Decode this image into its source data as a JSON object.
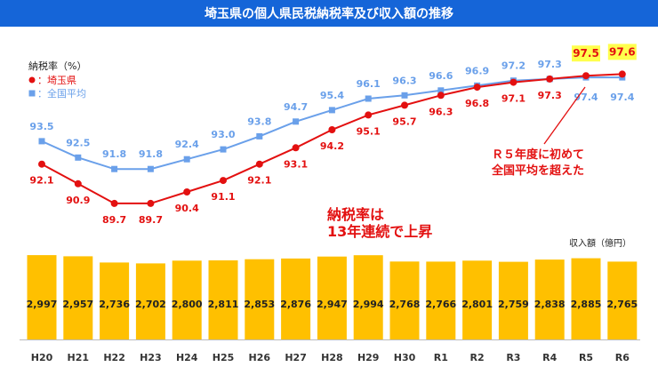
{
  "title": "埼玉県の個人県民税納税率及び収入額の推移",
  "colors": {
    "header": "#1565d8",
    "saitama": "#e31010",
    "national": "#6aa0ea",
    "bar": "#ffc000",
    "highlight": "#ffff4d",
    "annotation": "#e31010",
    "label_dark": "#222222"
  },
  "chart_data": [
    {
      "type": "line",
      "ylabel": "納税率（%）",
      "ylim": [
        88.5,
        98.0
      ],
      "categories": [
        "H20",
        "H21",
        "H22",
        "H23",
        "H24",
        "H25",
        "H26",
        "H27",
        "H28",
        "H29",
        "H30",
        "R1",
        "R2",
        "R3",
        "R4",
        "R5",
        "R6"
      ],
      "legend": [
        "：埼玉県",
        "：全国平均"
      ],
      "series": [
        {
          "name": "埼玉県",
          "values": [
            92.1,
            90.9,
            89.7,
            89.7,
            90.4,
            91.1,
            92.1,
            93.1,
            94.2,
            95.1,
            95.7,
            96.3,
            96.8,
            97.1,
            97.3,
            97.5,
            97.6
          ]
        },
        {
          "name": "全国平均",
          "values": [
            93.5,
            92.5,
            91.8,
            91.8,
            92.4,
            93.0,
            93.8,
            94.7,
            95.4,
            96.1,
            96.3,
            96.6,
            96.9,
            97.2,
            97.3,
            97.4,
            97.4
          ]
        }
      ],
      "annotations": {
        "streak_line1": "納税率は",
        "streak_line2": "13年連続で上昇",
        "r5_line1": "Ｒ５年度に初めて",
        "r5_line2": "全国平均を超えた"
      }
    },
    {
      "type": "bar",
      "ylabel": "収入額（億円）",
      "ylim": [
        0,
        3000
      ],
      "categories": [
        "H20",
        "H21",
        "H22",
        "H23",
        "H24",
        "H25",
        "H26",
        "H27",
        "H28",
        "H29",
        "H30",
        "R1",
        "R2",
        "R3",
        "R4",
        "R5",
        "R6"
      ],
      "values": [
        2997,
        2957,
        2736,
        2702,
        2800,
        2811,
        2853,
        2876,
        2947,
        2994,
        2768,
        2766,
        2801,
        2759,
        2838,
        2885,
        2765
      ],
      "value_labels": [
        "2,997",
        "2,957",
        "2,736",
        "2,702",
        "2,800",
        "2,811",
        "2,853",
        "2,876",
        "2,947",
        "2,994",
        "2,768",
        "2,766",
        "2,801",
        "2,759",
        "2,838",
        "2,885",
        "2,765"
      ]
    }
  ]
}
